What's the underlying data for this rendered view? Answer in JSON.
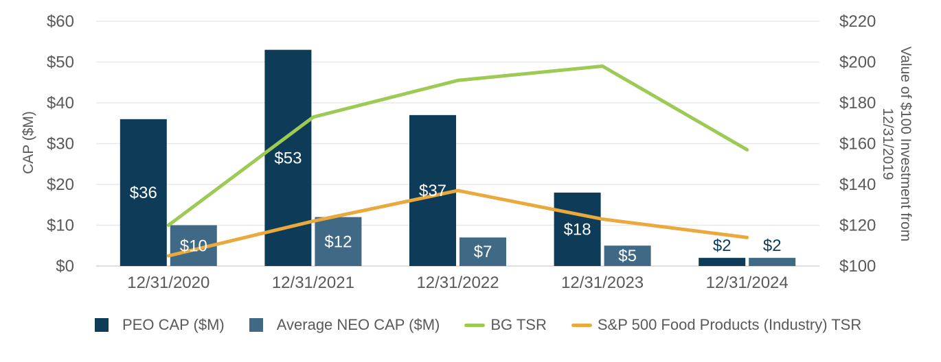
{
  "chart_data": {
    "type": "combo-bar-line",
    "title": "",
    "categories": [
      "12/31/2020",
      "12/31/2021",
      "12/31/2022",
      "12/31/2023",
      "12/31/2024"
    ],
    "bar_series": [
      {
        "name": "PEO CAP ($M)",
        "color": "#0e3c58",
        "axis": "left",
        "values": [
          36,
          53,
          37,
          18,
          2
        ],
        "labels": [
          "$36",
          "$53",
          "$37",
          "$18",
          "$2"
        ]
      },
      {
        "name": "Average NEO CAP ($M)",
        "color": "#3f6984",
        "axis": "left",
        "values": [
          10,
          12,
          7,
          5,
          2
        ],
        "labels": [
          "$10",
          "$12",
          "$7",
          "$5",
          "$2"
        ]
      }
    ],
    "line_series": [
      {
        "name": "BG TSR",
        "color": "#9cca55",
        "axis": "right",
        "values": [
          120,
          173,
          191,
          198,
          157
        ]
      },
      {
        "name": "S&P 500 Food Products (Industry) TSR",
        "color": "#e9a93c",
        "axis": "right",
        "values": [
          105,
          122,
          137,
          123,
          114
        ]
      }
    ],
    "left_axis": {
      "title": "CAP ($M)",
      "min": 0,
      "max": 60,
      "tick_step": 10,
      "tick_labels": [
        "$0",
        "$10",
        "$20",
        "$30",
        "$40",
        "$50",
        "$60"
      ]
    },
    "right_axis": {
      "title": "Value of $100 Investment from 12/31/2019",
      "min": 100,
      "max": 220,
      "tick_step": 20,
      "tick_labels": [
        "$100",
        "$120",
        "$140",
        "$160",
        "$180",
        "$200",
        "$220"
      ]
    },
    "grid": "horizontal",
    "legend_position": "bottom",
    "colors": {
      "text": "#595959",
      "gridline": "#e8e8e8",
      "axis_line": "#d4d4d4",
      "label_inside": "#ffffff",
      "label_outside": "#0e3c58",
      "background": "#ffffff"
    }
  }
}
